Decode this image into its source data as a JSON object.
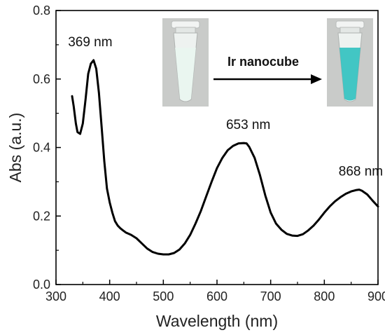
{
  "chart_data": {
    "type": "line",
    "xlabel": "Wavelength (nm)",
    "ylabel": "Abs (a.u.)",
    "xlim": [
      300,
      900
    ],
    "ylim": [
      0.0,
      0.8
    ],
    "xticks": [
      300,
      400,
      500,
      600,
      700,
      800,
      900
    ],
    "xtick_labels": [
      "300",
      "400",
      "500",
      "600",
      "700",
      "800",
      "900"
    ],
    "yticks": [
      0.0,
      0.2,
      0.4,
      0.6,
      0.8
    ],
    "ytick_labels": [
      "0.0",
      "0.2",
      "0.4",
      "0.6",
      "0.8"
    ],
    "grid": false,
    "series": [
      {
        "color": "#000000",
        "x": [
          330,
          333,
          337,
          340,
          345,
          350,
          355,
          360,
          365,
          370,
          375,
          380,
          385,
          390,
          395,
          400,
          405,
          410,
          415,
          420,
          425,
          430,
          440,
          450,
          460,
          470,
          480,
          490,
          500,
          510,
          520,
          530,
          540,
          550,
          560,
          570,
          580,
          590,
          600,
          610,
          620,
          630,
          640,
          650,
          655,
          660,
          670,
          680,
          690,
          700,
          710,
          720,
          730,
          740,
          750,
          760,
          770,
          780,
          790,
          800,
          810,
          820,
          830,
          840,
          850,
          860,
          865,
          870,
          880,
          890,
          900
        ],
        "y": [
          0.55,
          0.52,
          0.47,
          0.445,
          0.44,
          0.47,
          0.54,
          0.615,
          0.645,
          0.655,
          0.63,
          0.56,
          0.46,
          0.36,
          0.28,
          0.24,
          0.21,
          0.185,
          0.172,
          0.164,
          0.158,
          0.152,
          0.145,
          0.135,
          0.12,
          0.105,
          0.095,
          0.09,
          0.088,
          0.088,
          0.092,
          0.102,
          0.12,
          0.145,
          0.178,
          0.215,
          0.258,
          0.3,
          0.34,
          0.37,
          0.392,
          0.405,
          0.412,
          0.413,
          0.412,
          0.402,
          0.37,
          0.32,
          0.26,
          0.21,
          0.178,
          0.16,
          0.148,
          0.143,
          0.142,
          0.147,
          0.158,
          0.172,
          0.19,
          0.21,
          0.228,
          0.243,
          0.255,
          0.265,
          0.272,
          0.276,
          0.277,
          0.274,
          0.263,
          0.245,
          0.228
        ]
      }
    ],
    "annotations": [
      {
        "text": "369 nm",
        "x": 369,
        "y": 0.655
      },
      {
        "text": "653 nm",
        "x": 653,
        "y": 0.413
      },
      {
        "text": "868 nm",
        "x": 868,
        "y": 0.277
      }
    ],
    "inset": {
      "arrow_label": "Ir nanocube",
      "left_tube_color": "#e9f6ef",
      "right_tube_color": "#2fc1bf"
    }
  }
}
